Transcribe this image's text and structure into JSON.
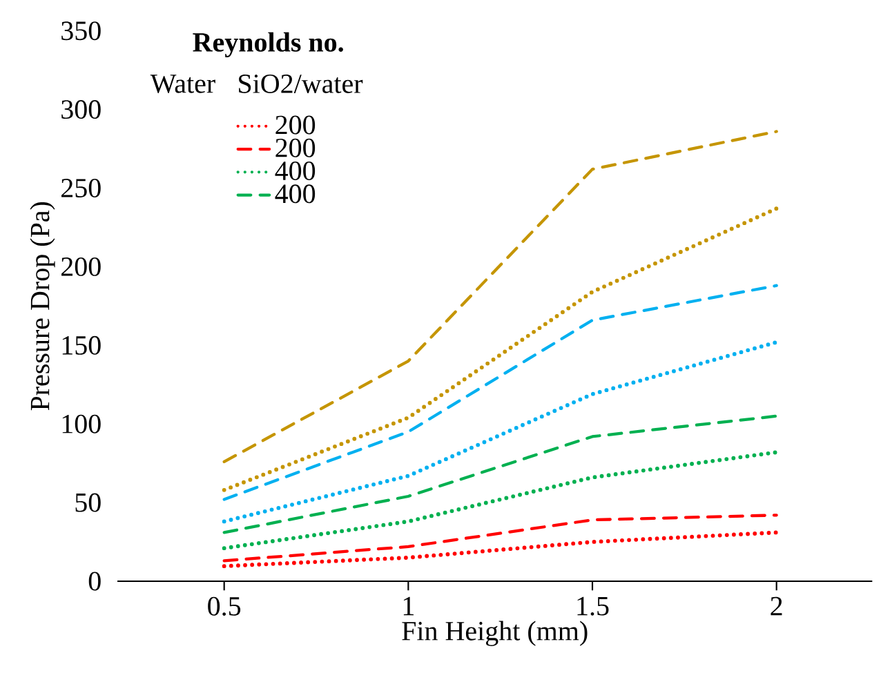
{
  "chart_data": {
    "type": "line",
    "xlabel": "Fin Height (mm)",
    "ylabel": "Pressure Drop (Pa)",
    "legend_title": "Reynolds no.",
    "annotations": [
      "Water",
      "SiO2/water"
    ],
    "x": [
      0.5,
      1,
      1.5,
      2
    ],
    "series": [
      {
        "name": "200",
        "color": "#ff0000",
        "line_style": "dotted",
        "values": [
          9.6,
          15,
          25,
          31
        ]
      },
      {
        "name": "200",
        "color": "#ff0000",
        "line_style": "dashed",
        "values": [
          13,
          22,
          39,
          42
        ]
      },
      {
        "name": "400",
        "color": "#00b050",
        "line_style": "dotted",
        "values": [
          21,
          38,
          66,
          82
        ]
      },
      {
        "name": "400",
        "color": "#00b050",
        "line_style": "dashed",
        "values": [
          31,
          54,
          92,
          105
        ]
      },
      {
        "color": "#00b0f0",
        "line_style": "dotted",
        "values": [
          38,
          67,
          119,
          152
        ]
      },
      {
        "color": "#00b0f0",
        "line_style": "dashed",
        "values": [
          52,
          95,
          166,
          188
        ]
      },
      {
        "color": "#c59500",
        "line_style": "dotted",
        "values": [
          58,
          104,
          184,
          237
        ]
      },
      {
        "color": "#c59500",
        "line_style": "dashed",
        "values": [
          76,
          140,
          262,
          286
        ]
      }
    ],
    "xlim": [
      0.21,
      2.26
    ],
    "ylim": [
      0,
      350
    ],
    "xticks": [
      0.5,
      1,
      1.5,
      2
    ],
    "yticks": [
      0,
      50,
      100,
      150,
      200,
      250,
      300,
      350
    ],
    "legend": "top left",
    "grid": false,
    "marker": "none"
  }
}
